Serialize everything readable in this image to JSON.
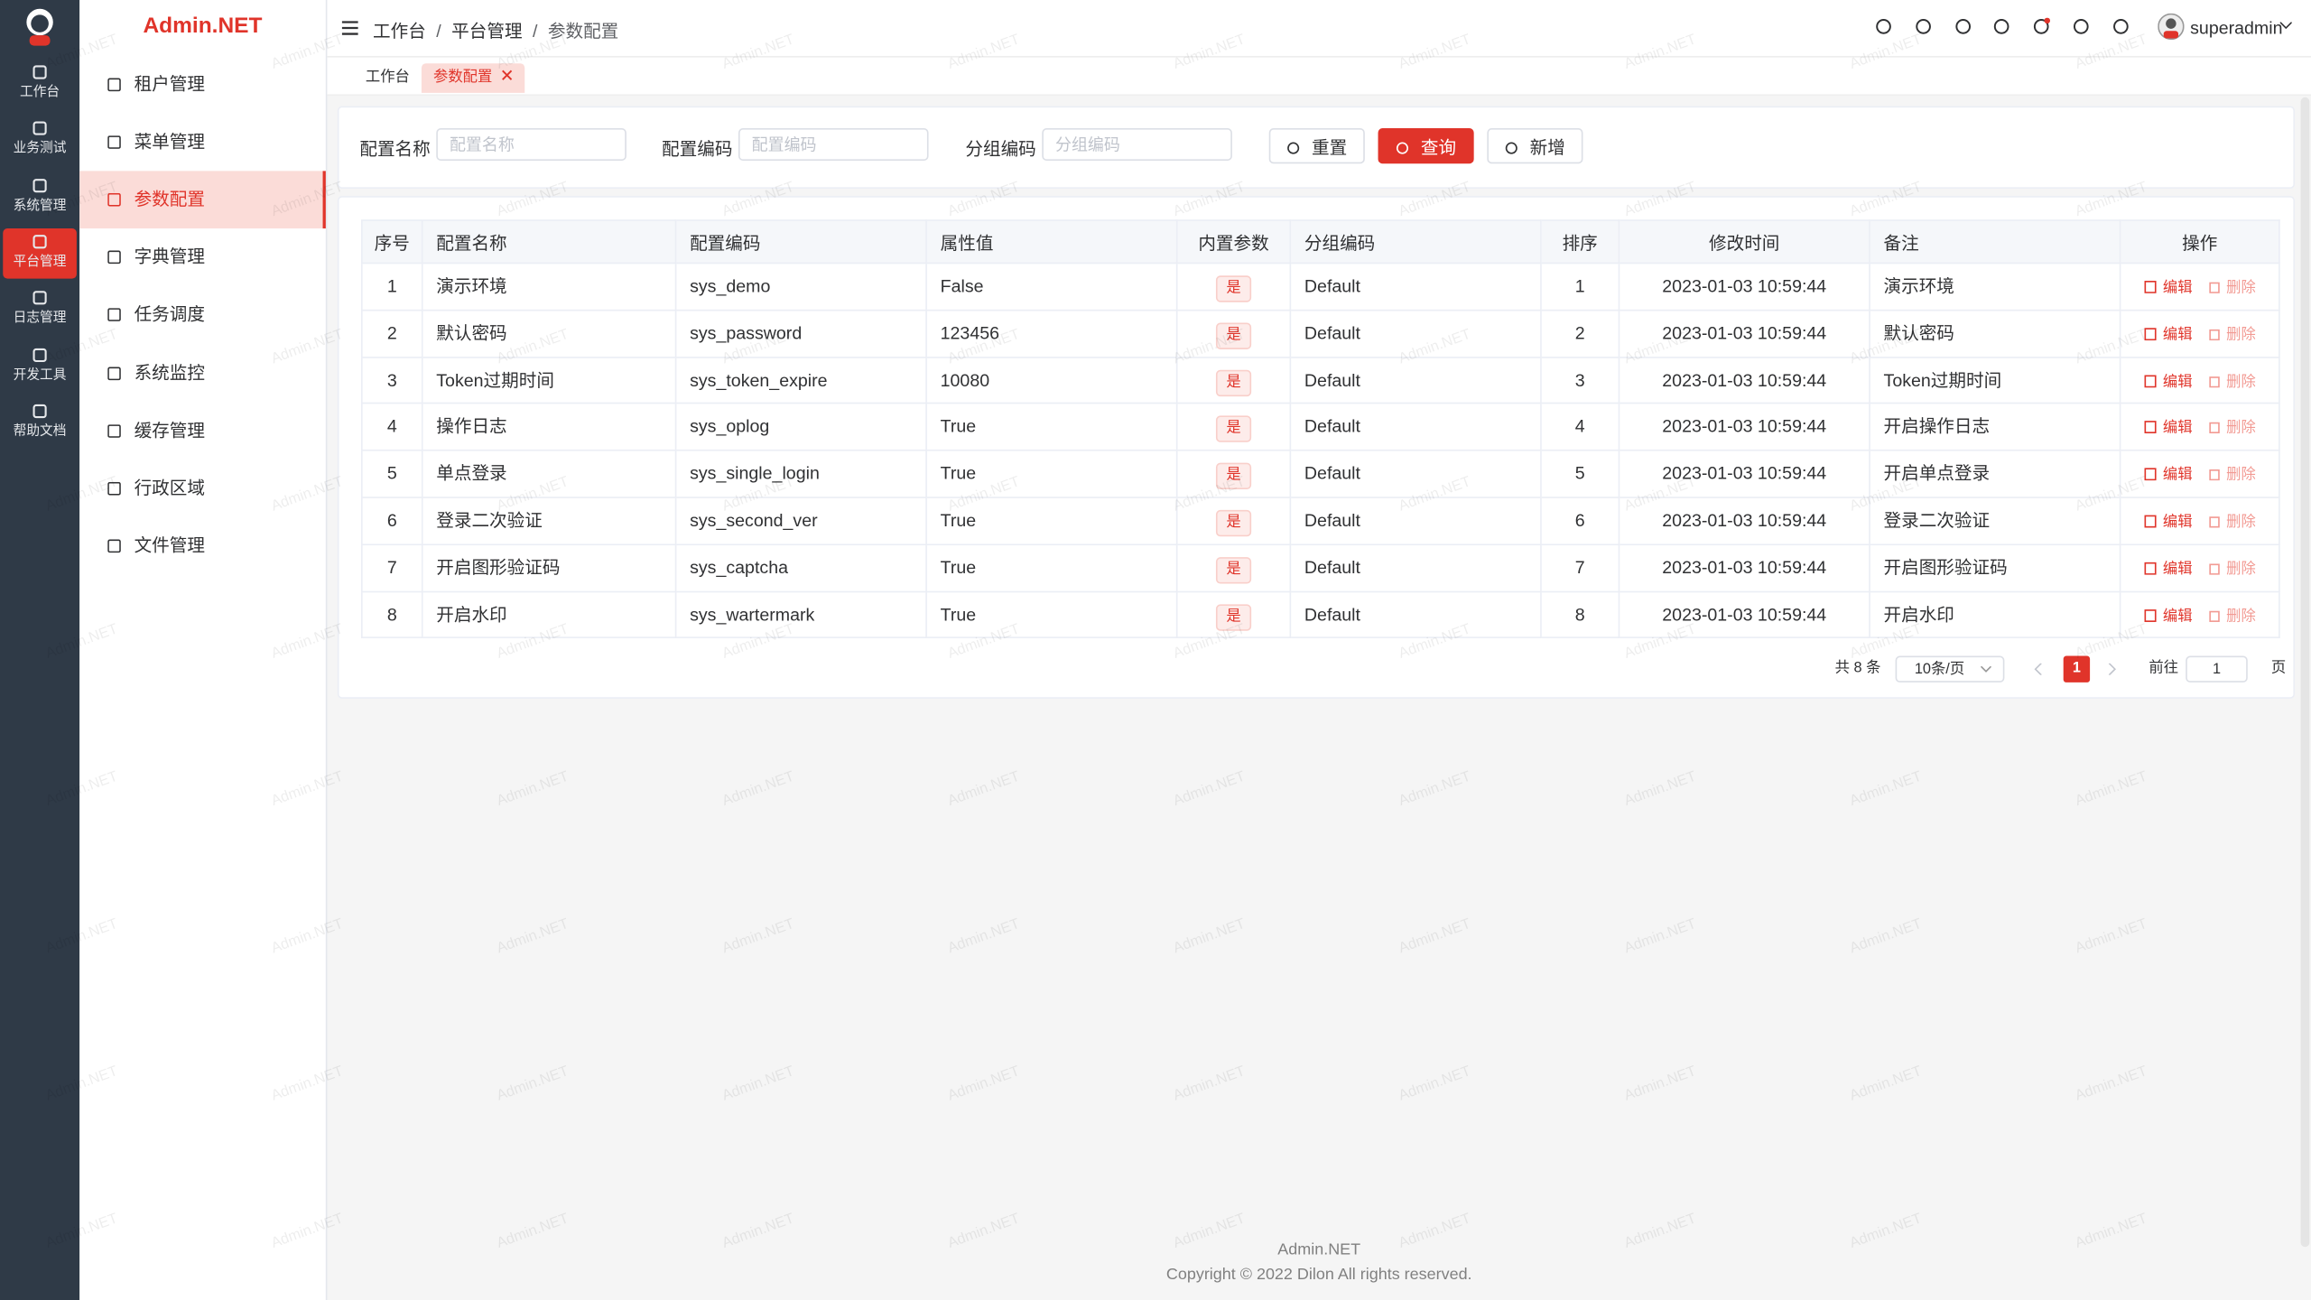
{
  "app": {
    "logo": "Admin.NET",
    "rail": [
      "工作台",
      "业务测试",
      "系统管理",
      "平台管理",
      "日志管理",
      "开发工具",
      "帮助文档"
    ],
    "rail_active": 3,
    "menu": [
      "租户管理",
      "菜单管理",
      "参数配置",
      "字典管理",
      "任务调度",
      "系统监控",
      "缓存管理",
      "行政区域",
      "文件管理"
    ],
    "menu_active": 2,
    "breadcrumb": {
      "items": [
        "工作台",
        "平台管理",
        "参数配置"
      ],
      "separator": "/"
    },
    "tabs": [
      "工作台",
      "参数配置"
    ],
    "tab_active": 1,
    "user": "superadmin",
    "watermark": "Admin.NET"
  },
  "search": {
    "fields": [
      {
        "label": "配置名称",
        "placeholder": "配置名称"
      },
      {
        "label": "配置编码",
        "placeholder": "配置编码"
      },
      {
        "label": "分组编码",
        "placeholder": "分组编码"
      }
    ],
    "buttons": {
      "reset": "重置",
      "query": "查询",
      "add": "新增"
    }
  },
  "table": {
    "columns": [
      "序号",
      "配置名称",
      "配置编码",
      "属性值",
      "内置参数",
      "分组编码",
      "排序",
      "修改时间",
      "备注",
      "操作"
    ],
    "rows": [
      [
        1,
        "演示环境",
        "sys_demo",
        "False",
        "是",
        "Default",
        1,
        "2023-01-03 10:59:44",
        "演示环境"
      ],
      [
        2,
        "默认密码",
        "sys_password",
        "123456",
        "是",
        "Default",
        2,
        "2023-01-03 10:59:44",
        "默认密码"
      ],
      [
        3,
        "Token过期时间",
        "sys_token_expire",
        "10080",
        "是",
        "Default",
        3,
        "2023-01-03 10:59:44",
        "Token过期时间"
      ],
      [
        4,
        "操作日志",
        "sys_oplog",
        "True",
        "是",
        "Default",
        4,
        "2023-01-03 10:59:44",
        "开启操作日志"
      ],
      [
        5,
        "单点登录",
        "sys_single_login",
        "True",
        "是",
        "Default",
        5,
        "2023-01-03 10:59:44",
        "开启单点登录"
      ],
      [
        6,
        "登录二次验证",
        "sys_second_ver",
        "True",
        "是",
        "Default",
        6,
        "2023-01-03 10:59:44",
        "登录二次验证"
      ],
      [
        7,
        "开启图形验证码",
        "sys_captcha",
        "True",
        "是",
        "Default",
        7,
        "2023-01-03 10:59:44",
        "开启图形验证码"
      ],
      [
        8,
        "开启水印",
        "sys_wartermark",
        "True",
        "是",
        "Default",
        8,
        "2023-01-03 10:59:44",
        "开启水印"
      ]
    ],
    "actions": {
      "edit": "编辑",
      "delete": "删除"
    }
  },
  "pagination": {
    "total": "共 8 条",
    "size": "10条/页",
    "current": "1",
    "goto": "前往",
    "goto_value": "1",
    "page_unit": "页"
  },
  "footer": {
    "name": "Admin.NET",
    "copyright": "Copyright © 2022 Dilon All rights reserved."
  }
}
